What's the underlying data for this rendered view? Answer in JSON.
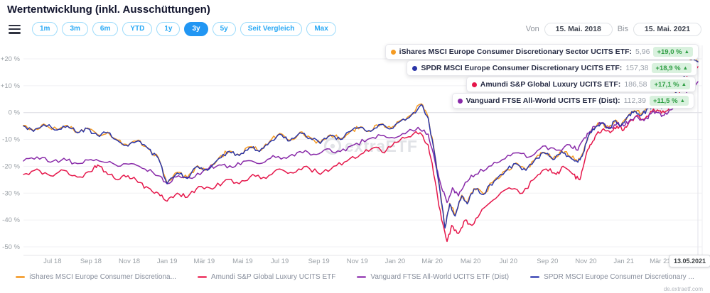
{
  "header": {
    "title": "Wertentwicklung (inkl. Ausschüttungen)"
  },
  "toolbar": {
    "ranges": [
      "1m",
      "3m",
      "6m",
      "YTD",
      "1y",
      "3y",
      "5y",
      "Seit Vergleich",
      "Max"
    ],
    "active_range": "3y",
    "von_label": "Von",
    "bis_label": "Bis",
    "von_value": "15. Mai. 2018",
    "bis_value": "15. Mai. 2021"
  },
  "tooltip": {
    "rows": [
      {
        "name": "iShares MSCI Europe Consumer Discretionary Sector UCITS ETF",
        "value": "5,96",
        "change": "+19,0 %",
        "color": "#f59b23"
      },
      {
        "name": "SPDR MSCI Europe Consumer Discretionary UCITS ETF",
        "value": "157,38",
        "change": "+18,9 %",
        "color": "#2a35a8"
      },
      {
        "name": "Amundi S&P Global Luxury UCITS ETF",
        "value": "186,58",
        "change": "+17,1 %",
        "color": "#e5164a"
      },
      {
        "name": "Vanguard FTSE All-World UCITS ETF (Dist)",
        "value": "112,39",
        "change": "+11,5 %",
        "color": "#8829a8"
      }
    ]
  },
  "chart_data": {
    "type": "line",
    "title": "Wertentwicklung (inkl. Ausschüttungen)",
    "x_range": [
      "15.05.2018",
      "15.05.2021"
    ],
    "y_unit": "%",
    "ylim": [
      -53,
      25
    ],
    "grid": "horizontal",
    "legend_position": "bottom",
    "crosshair_date": "13.05.2021",
    "y_ticks": [
      {
        "label": "+20 %",
        "value": 20
      },
      {
        "label": "+10 %",
        "value": 10
      },
      {
        "label": "0 %",
        "value": 0
      },
      {
        "label": "-10 %",
        "value": -10
      },
      {
        "label": "-20 %",
        "value": -20
      },
      {
        "label": "-30 %",
        "value": -30
      },
      {
        "label": "-40 %",
        "value": -40
      },
      {
        "label": "-50 %",
        "value": -50
      }
    ],
    "x_ticks": [
      {
        "label": "Jul 18",
        "f": 0.043
      },
      {
        "label": "Sep 18",
        "f": 0.1
      },
      {
        "label": "Nov 18",
        "f": 0.157
      },
      {
        "label": "Jan 19",
        "f": 0.213
      },
      {
        "label": "Mär 19",
        "f": 0.268
      },
      {
        "label": "Mai 19",
        "f": 0.325
      },
      {
        "label": "Jul 19",
        "f": 0.38
      },
      {
        "label": "Sep 19",
        "f": 0.438
      },
      {
        "label": "Nov 19",
        "f": 0.495
      },
      {
        "label": "Jan 20",
        "f": 0.551
      },
      {
        "label": "Mär 20",
        "f": 0.606
      },
      {
        "label": "Mai 20",
        "f": 0.663
      },
      {
        "label": "Jul 20",
        "f": 0.719
      },
      {
        "label": "Sep 20",
        "f": 0.777
      },
      {
        "label": "Nov 20",
        "f": 0.834
      },
      {
        "label": "Jan 21",
        "f": 0.89
      },
      {
        "label": "Mär 21",
        "f": 0.944
      }
    ],
    "series": [
      {
        "id": "ishares",
        "name": "iShares MSCI Europe Consumer Discretionary Sector UCITS ETF",
        "color": "#f59b23",
        "final_value": "5,96",
        "change_pct": 19.0,
        "base_id": "spdr",
        "offset": 0.25
      },
      {
        "id": "amundi",
        "name": "Amundi S&P Global Luxury UCITS ETF",
        "color": "#e5164a",
        "final_value": "186,58",
        "change_pct": 17.1,
        "points": [
          [
            0,
            -23
          ],
          [
            0.02,
            -21
          ],
          [
            0.04,
            -23.5
          ],
          [
            0.06,
            -21.5
          ],
          [
            0.08,
            -24
          ],
          [
            0.1,
            -22
          ],
          [
            0.11,
            -19.5
          ],
          [
            0.125,
            -23
          ],
          [
            0.14,
            -25
          ],
          [
            0.155,
            -23.5
          ],
          [
            0.17,
            -26
          ],
          [
            0.185,
            -28
          ],
          [
            0.2,
            -30
          ],
          [
            0.213,
            -33
          ],
          [
            0.228,
            -30
          ],
          [
            0.243,
            -31.5
          ],
          [
            0.26,
            -27.5
          ],
          [
            0.28,
            -28.5
          ],
          [
            0.3,
            -25
          ],
          [
            0.32,
            -26.5
          ],
          [
            0.34,
            -23
          ],
          [
            0.36,
            -24.5
          ],
          [
            0.38,
            -21
          ],
          [
            0.4,
            -22.5
          ],
          [
            0.42,
            -20
          ],
          [
            0.44,
            -23
          ],
          [
            0.46,
            -20
          ],
          [
            0.48,
            -18
          ],
          [
            0.5,
            -15.5
          ],
          [
            0.52,
            -13
          ],
          [
            0.535,
            -15
          ],
          [
            0.55,
            -11
          ],
          [
            0.565,
            -9.5
          ],
          [
            0.58,
            -7.5
          ],
          [
            0.59,
            -8
          ],
          [
            0.6,
            -12
          ],
          [
            0.61,
            -25
          ],
          [
            0.62,
            -40
          ],
          [
            0.628,
            -48
          ],
          [
            0.635,
            -42
          ],
          [
            0.645,
            -45
          ],
          [
            0.655,
            -40
          ],
          [
            0.665,
            -42
          ],
          [
            0.68,
            -36
          ],
          [
            0.7,
            -32
          ],
          [
            0.72,
            -28
          ],
          [
            0.74,
            -30
          ],
          [
            0.76,
            -24
          ],
          [
            0.775,
            -21
          ],
          [
            0.79,
            -23
          ],
          [
            0.8,
            -20
          ],
          [
            0.815,
            -23
          ],
          [
            0.825,
            -25
          ],
          [
            0.832,
            -18
          ],
          [
            0.84,
            -12
          ],
          [
            0.85,
            -8
          ],
          [
            0.86,
            -6
          ],
          [
            0.87,
            -7.5
          ],
          [
            0.88,
            -5
          ],
          [
            0.89,
            -6.5
          ],
          [
            0.9,
            -3
          ],
          [
            0.91,
            -1
          ],
          [
            0.92,
            -2.5
          ],
          [
            0.93,
            0.5
          ],
          [
            0.94,
            1
          ],
          [
            0.95,
            0
          ],
          [
            0.96,
            2.5
          ],
          [
            0.97,
            6
          ],
          [
            0.98,
            11
          ],
          [
            0.99,
            16
          ],
          [
            1,
            17.1
          ]
        ]
      },
      {
        "id": "vanguard",
        "name": "Vanguard FTSE All-World UCITS ETF (Dist)",
        "color": "#8829a8",
        "final_value": "112,39",
        "change_pct": 11.5,
        "points": [
          [
            0,
            -18
          ],
          [
            0.02,
            -16.5
          ],
          [
            0.04,
            -18.5
          ],
          [
            0.06,
            -17
          ],
          [
            0.08,
            -19
          ],
          [
            0.1,
            -17.5
          ],
          [
            0.12,
            -18.5
          ],
          [
            0.14,
            -20
          ],
          [
            0.16,
            -19
          ],
          [
            0.18,
            -21
          ],
          [
            0.2,
            -23.5
          ],
          [
            0.213,
            -26.5
          ],
          [
            0.23,
            -23.5
          ],
          [
            0.25,
            -24.5
          ],
          [
            0.27,
            -21
          ],
          [
            0.29,
            -19.5
          ],
          [
            0.31,
            -20.5
          ],
          [
            0.33,
            -18
          ],
          [
            0.35,
            -19
          ],
          [
            0.37,
            -16
          ],
          [
            0.39,
            -17
          ],
          [
            0.41,
            -14.5
          ],
          [
            0.43,
            -15.5
          ],
          [
            0.45,
            -13.5
          ],
          [
            0.47,
            -14.5
          ],
          [
            0.49,
            -12
          ],
          [
            0.51,
            -10
          ],
          [
            0.53,
            -8.5
          ],
          [
            0.55,
            -9.5
          ],
          [
            0.57,
            -7
          ],
          [
            0.585,
            -5.5
          ],
          [
            0.6,
            -8
          ],
          [
            0.61,
            -18
          ],
          [
            0.62,
            -28
          ],
          [
            0.628,
            -33.5
          ],
          [
            0.636,
            -28
          ],
          [
            0.645,
            -31
          ],
          [
            0.655,
            -26
          ],
          [
            0.67,
            -23
          ],
          [
            0.69,
            -20
          ],
          [
            0.71,
            -17.5
          ],
          [
            0.73,
            -15
          ],
          [
            0.75,
            -16.5
          ],
          [
            0.77,
            -12.5
          ],
          [
            0.79,
            -14
          ],
          [
            0.81,
            -12
          ],
          [
            0.822,
            -14
          ],
          [
            0.83,
            -10
          ],
          [
            0.84,
            -7
          ],
          [
            0.85,
            -5
          ],
          [
            0.86,
            -4
          ],
          [
            0.87,
            -5.5
          ],
          [
            0.88,
            -4
          ],
          [
            0.89,
            -5
          ],
          [
            0.9,
            -2.5
          ],
          [
            0.91,
            -1.5
          ],
          [
            0.92,
            -3
          ],
          [
            0.93,
            -0.5
          ],
          [
            0.94,
            0
          ],
          [
            0.95,
            -1
          ],
          [
            0.96,
            1
          ],
          [
            0.97,
            3.5
          ],
          [
            0.98,
            6
          ],
          [
            0.99,
            9
          ],
          [
            1,
            11.5
          ]
        ]
      },
      {
        "id": "spdr",
        "name": "SPDR MSCI Europe Consumer Discretionary UCITS ETF",
        "color": "#2a35a8",
        "final_value": "157,38",
        "change_pct": 18.9,
        "points": [
          [
            0,
            -5
          ],
          [
            0.015,
            -7
          ],
          [
            0.03,
            -4.5
          ],
          [
            0.05,
            -6.5
          ],
          [
            0.065,
            -5
          ],
          [
            0.08,
            -7.5
          ],
          [
            0.095,
            -6
          ],
          [
            0.11,
            -8.5
          ],
          [
            0.125,
            -7.5
          ],
          [
            0.14,
            -10.5
          ],
          [
            0.155,
            -12.5
          ],
          [
            0.17,
            -10.5
          ],
          [
            0.185,
            -13.5
          ],
          [
            0.2,
            -17
          ],
          [
            0.213,
            -26.5
          ],
          [
            0.228,
            -22.5
          ],
          [
            0.243,
            -24.5
          ],
          [
            0.258,
            -20
          ],
          [
            0.273,
            -21.5
          ],
          [
            0.29,
            -17
          ],
          [
            0.305,
            -14.5
          ],
          [
            0.32,
            -16
          ],
          [
            0.335,
            -13
          ],
          [
            0.35,
            -14.5
          ],
          [
            0.365,
            -11
          ],
          [
            0.38,
            -8
          ],
          [
            0.395,
            -10.5
          ],
          [
            0.41,
            -7.5
          ],
          [
            0.425,
            -9.5
          ],
          [
            0.44,
            -11.5
          ],
          [
            0.455,
            -8.5
          ],
          [
            0.47,
            -10
          ],
          [
            0.485,
            -7
          ],
          [
            0.5,
            -5.5
          ],
          [
            0.515,
            -7
          ],
          [
            0.53,
            -4.5
          ],
          [
            0.545,
            -6
          ],
          [
            0.56,
            -3
          ],
          [
            0.575,
            -1
          ],
          [
            0.59,
            3
          ],
          [
            0.6,
            -2
          ],
          [
            0.61,
            -16
          ],
          [
            0.618,
            -30
          ],
          [
            0.625,
            -43
          ],
          [
            0.632,
            -34
          ],
          [
            0.64,
            -38.5
          ],
          [
            0.65,
            -31
          ],
          [
            0.658,
            -34
          ],
          [
            0.668,
            -28.5
          ],
          [
            0.682,
            -30.5
          ],
          [
            0.698,
            -25.5
          ],
          [
            0.714,
            -22
          ],
          [
            0.73,
            -19
          ],
          [
            0.745,
            -21.5
          ],
          [
            0.76,
            -17
          ],
          [
            0.772,
            -15
          ],
          [
            0.785,
            -17.5
          ],
          [
            0.798,
            -14.5
          ],
          [
            0.81,
            -16.5
          ],
          [
            0.822,
            -18.5
          ],
          [
            0.83,
            -15
          ],
          [
            0.838,
            -8.5
          ],
          [
            0.848,
            -5.5
          ],
          [
            0.858,
            -4
          ],
          [
            0.868,
            -6
          ],
          [
            0.878,
            -3
          ],
          [
            0.886,
            -5
          ],
          [
            0.896,
            -1.5
          ],
          [
            0.906,
            0.5
          ],
          [
            0.916,
            -1
          ],
          [
            0.926,
            1.5
          ],
          [
            0.936,
            3
          ],
          [
            0.946,
            1.5
          ],
          [
            0.956,
            4
          ],
          [
            0.966,
            7
          ],
          [
            0.976,
            11
          ],
          [
            0.984,
            16
          ],
          [
            0.991,
            20.5
          ],
          [
            1,
            18.9
          ]
        ]
      }
    ]
  },
  "legend": {
    "items": [
      {
        "label": "iShares MSCI Europe Consumer Discretiona...",
        "color": "#f5a53f"
      },
      {
        "label": "Amundi S&P Global Luxury UCITS ETF",
        "color": "#ef4f75"
      },
      {
        "label": "Vanguard FTSE All-World UCITS ETF (Dist)",
        "color": "#a75ec0"
      },
      {
        "label": "SPDR MSCI Europe Consumer Discretionary ...",
        "color": "#5a63c0"
      }
    ]
  },
  "watermark": {
    "text": "extraETF",
    "site": "de.extraetf.com"
  }
}
